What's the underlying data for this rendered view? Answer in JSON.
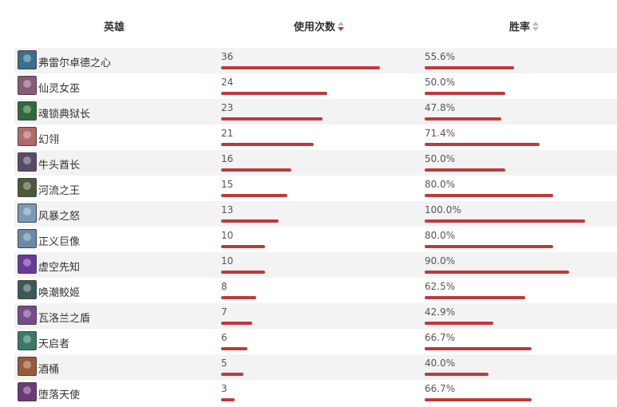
{
  "header": {
    "hero": "英雄",
    "use_count": "使用次数",
    "win_rate": "胜率"
  },
  "colors": {
    "bar": "#c0393b",
    "sort_active": "#c0393b",
    "sort_inactive": "#bdbdbd",
    "row_alt": "#f3f3f3"
  },
  "rows": [
    {
      "name": "弗雷尔卓德之心",
      "use": "36",
      "win": "55.6%",
      "use_frac": 1.0,
      "win_frac": 0.556,
      "icon": "hero-portrait-icon",
      "color": "#3a6f8f"
    },
    {
      "name": "仙灵女巫",
      "use": "24",
      "win": "50.0%",
      "use_frac": 0.667,
      "win_frac": 0.5,
      "icon": "hero-portrait-icon",
      "color": "#8a5a7a"
    },
    {
      "name": "魂锁典狱长",
      "use": "23",
      "win": "47.8%",
      "use_frac": 0.639,
      "win_frac": 0.478,
      "icon": "hero-portrait-icon",
      "color": "#2f6b3a"
    },
    {
      "name": "幻翎",
      "use": "21",
      "win": "71.4%",
      "use_frac": 0.583,
      "win_frac": 0.714,
      "icon": "hero-portrait-icon",
      "color": "#b06a6a"
    },
    {
      "name": "牛头酋长",
      "use": "16",
      "win": "50.0%",
      "use_frac": 0.444,
      "win_frac": 0.5,
      "icon": "hero-portrait-icon",
      "color": "#5a4a6a"
    },
    {
      "name": "河流之王",
      "use": "15",
      "win": "80.0%",
      "use_frac": 0.417,
      "win_frac": 0.8,
      "icon": "hero-portrait-icon",
      "color": "#4a5a3a"
    },
    {
      "name": "风暴之怒",
      "use": "13",
      "win": "100.0%",
      "use_frac": 0.361,
      "win_frac": 1.0,
      "icon": "hero-portrait-icon",
      "color": "#7a9ab8"
    },
    {
      "name": "正义巨像",
      "use": "10",
      "win": "80.0%",
      "use_frac": 0.278,
      "win_frac": 0.8,
      "icon": "hero-portrait-icon",
      "color": "#6a8aa8"
    },
    {
      "name": "虚空先知",
      "use": "10",
      "win": "90.0%",
      "use_frac": 0.278,
      "win_frac": 0.9,
      "icon": "hero-portrait-icon",
      "color": "#6a3a9a"
    },
    {
      "name": "唤潮鲛姬",
      "use": "8",
      "win": "62.5%",
      "use_frac": 0.222,
      "win_frac": 0.625,
      "icon": "hero-portrait-icon",
      "color": "#3a5a5a"
    },
    {
      "name": "瓦洛兰之盾",
      "use": "7",
      "win": "42.9%",
      "use_frac": 0.194,
      "win_frac": 0.429,
      "icon": "hero-portrait-icon",
      "color": "#7a4a8a"
    },
    {
      "name": "天启者",
      "use": "6",
      "win": "66.7%",
      "use_frac": 0.167,
      "win_frac": 0.667,
      "icon": "hero-portrait-icon",
      "color": "#3a7a6a"
    },
    {
      "name": "酒桶",
      "use": "5",
      "win": "40.0%",
      "use_frac": 0.139,
      "win_frac": 0.4,
      "icon": "hero-portrait-icon",
      "color": "#9a5a3a"
    },
    {
      "name": "堕落天使",
      "use": "3",
      "win": "66.7%",
      "use_frac": 0.083,
      "win_frac": 0.667,
      "icon": "hero-portrait-icon",
      "color": "#6a3a7a"
    }
  ]
}
